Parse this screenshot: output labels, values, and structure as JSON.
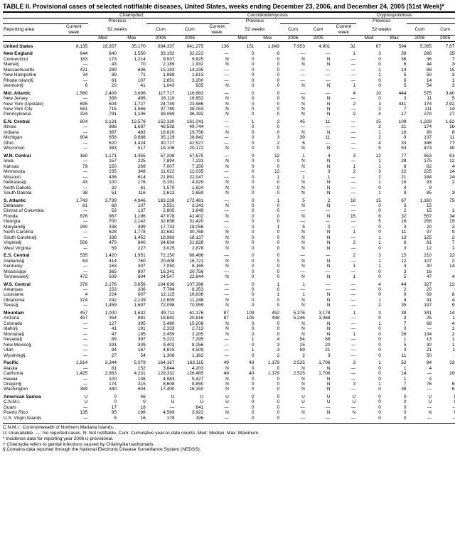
{
  "title": "TABLE II. Provisional cases of selected notifiable diseases, United States, weeks ending December 23, 2006, and December 24, 2005 (51st Week)*",
  "diseases": [
    "Chlamydia†",
    "Coccidioidomycosis",
    "Cryptosporidiosis"
  ],
  "header_groups": [
    "Previous",
    "Previous",
    "Previous"
  ],
  "header_cols": [
    "Reporting area",
    "Current week",
    "Med",
    "Max",
    "Cum 2006",
    "Cum 2005",
    "Current week",
    "Med",
    "Max",
    "Cum 2006",
    "Cum 2005",
    "Current week",
    "Med",
    "Max",
    "Cum 2006",
    "Cum 2005"
  ],
  "header_sub": [
    "52 weeks",
    "52 weeks",
    "52 weeks"
  ],
  "rows": [
    {
      "s": true,
      "c": [
        "United States",
        "8,135",
        "19,357",
        "35,170",
        "934,337",
        "941,275",
        "136",
        "151",
        "1,643",
        "7,953",
        "4,901",
        "32",
        "67",
        "594",
        "5,065",
        "7,677"
      ]
    },
    {
      "s": true,
      "c": [
        "New England",
        "644",
        "640",
        "1,550",
        "33,192",
        "32,222",
        "—",
        "0",
        "0",
        "—",
        "—",
        "1",
        "3",
        "39",
        "286",
        "350"
      ]
    },
    {
      "c": [
        "Connecticut",
        "183",
        "173",
        "1,214",
        "9,937",
        "9,825",
        "N",
        "0",
        "0",
        "N",
        "N",
        "—",
        "0",
        "36",
        "36",
        "79"
      ]
    },
    {
      "c": [
        "Maine§",
        "—",
        "43",
        "70",
        "2,189",
        "1,932",
        "N",
        "0",
        "0",
        "N",
        "N",
        "—",
        "0",
        "6",
        "44",
        "30"
      ]
    },
    {
      "c": [
        "Massachusetts",
        "421",
        "289",
        "606",
        "15,183",
        "14,235",
        "—",
        "0",
        "0",
        "—",
        "—",
        "—",
        "1",
        "14",
        "88",
        "151"
      ]
    },
    {
      "c": [
        "New Hampshire",
        "34",
        "39",
        "71",
        "1,989",
        "1,813",
        "—",
        "0",
        "0",
        "—",
        "—",
        "—",
        "1",
        "5",
        "50",
        "38"
      ]
    },
    {
      "c": [
        "Rhode Island§",
        "—",
        "61",
        "107",
        "2,851",
        "3,200",
        "—",
        "0",
        "0",
        "—",
        "—",
        "—",
        "0",
        "6",
        "14",
        "13"
      ]
    },
    {
      "c": [
        "Vermont§",
        "6",
        "20",
        "41",
        "1,043",
        "935",
        "N",
        "0",
        "0",
        "N",
        "N",
        "1",
        "0",
        "5",
        "54",
        "39"
      ]
    },
    {
      "s": true,
      "c": [
        "Mid. Atlantic",
        "1,580",
        "2,409",
        "3,696",
        "117,717",
        "116,683",
        "—",
        "0",
        "0",
        "—",
        "—",
        "4",
        "10",
        "444",
        "575",
        "3,401"
      ]
    },
    {
      "c": [
        "New Jersey",
        "—",
        "358",
        "495",
        "16,110",
        "18,852",
        "N",
        "0",
        "0",
        "N",
        "N",
        "—",
        "0",
        "3",
        "11",
        "58"
      ]
    },
    {
      "c": [
        "New York (Upstate)",
        "695",
        "504",
        "1,727",
        "24,749",
        "23,586",
        "N",
        "0",
        "0",
        "N",
        "N",
        "2",
        "3",
        "441",
        "174",
        "2,924"
      ]
    },
    {
      "c": [
        "New York City",
        "561",
        "716",
        "1,566",
        "37,789",
        "38,053",
        "N",
        "0",
        "0",
        "N",
        "N",
        "—",
        "2",
        "7",
        "111",
        "146"
      ]
    },
    {
      "c": [
        "Pennsylvania",
        "324",
        "791",
        "1,106",
        "39,069",
        "36,192",
        "N",
        "0",
        "0",
        "N",
        "N",
        "2",
        "4",
        "17",
        "279",
        "273"
      ]
    },
    {
      "s": true,
      "c": [
        "E.N. Central",
        "804",
        "3,131",
        "12,578",
        "152,330",
        "161,041",
        "—",
        "1",
        "3",
        "45",
        "11",
        "—",
        "15",
        "109",
        "1,229",
        "1,624"
      ]
    },
    {
      "c": [
        "Illinois",
        "—",
        "986",
        "1,697",
        "49,558",
        "49,744",
        "—",
        "0",
        "0",
        "—",
        "—",
        "—",
        "2",
        "21",
        "174",
        "160"
      ]
    },
    {
      "c": [
        "Indiana",
        "—",
        "387",
        "483",
        "18,820",
        "19,756",
        "N",
        "0",
        "0",
        "N",
        "N",
        "—",
        "1",
        "18",
        "99",
        "85"
      ]
    },
    {
      "c": [
        "Michigan",
        "804",
        "658",
        "9,888",
        "35,129",
        "28,842",
        "—",
        "0",
        "3",
        "39",
        "11",
        "—",
        "2",
        "9",
        "137",
        "112"
      ]
    },
    {
      "c": [
        "Ohio",
        "—",
        "620",
        "1,424",
        "30,717",
        "42,527",
        "—",
        "0",
        "2",
        "6",
        "—",
        "—",
        "4",
        "33",
        "346",
        "770"
      ]
    },
    {
      "c": [
        "Wisconsin",
        "—",
        "383",
        "517",
        "18,106",
        "20,172",
        "N",
        "0",
        "0",
        "N",
        "N",
        "—",
        "5",
        "53",
        "473",
        "497"
      ]
    },
    {
      "s": true,
      "c": [
        "W.N. Central",
        "160",
        "1,171",
        "1,455",
        "57,208",
        "57,675",
        "—",
        "0",
        "12",
        "1",
        "4",
        "3",
        "12",
        "77",
        "853",
        "610"
      ]
    },
    {
      "c": [
        "Iowa",
        "—",
        "157",
        "225",
        "7,894",
        "7,231",
        "N",
        "0",
        "0",
        "N",
        "N",
        "—",
        "1",
        "28",
        "175",
        "121"
      ]
    },
    {
      "c": [
        "Kansas",
        "79",
        "150",
        "269",
        "7,007",
        "7,150",
        "N",
        "0",
        "0",
        "N",
        "N",
        "1",
        "1",
        "8",
        "82",
        "40"
      ]
    },
    {
      "c": [
        "Minnesota",
        "—",
        "235",
        "348",
        "11,022",
        "12,035",
        "—",
        "0",
        "12",
        "—",
        "3",
        "2",
        "3",
        "22",
        "225",
        "144"
      ]
    },
    {
      "c": [
        "Missouri",
        "—",
        "436",
        "614",
        "21,891",
        "22,047",
        "—",
        "0",
        "1",
        "1",
        "1",
        "—",
        "2",
        "21",
        "184",
        "246"
      ]
    },
    {
      "c": [
        "Nebraska§",
        "43",
        "100",
        "176",
        "5,191",
        "4,929",
        "N",
        "0",
        "0",
        "N",
        "N",
        "—",
        "1",
        "16",
        "93",
        "28"
      ]
    },
    {
      "c": [
        "North Dakota",
        "—",
        "32",
        "61",
        "1,570",
        "1,624",
        "N",
        "0",
        "0",
        "N",
        "N",
        "—",
        "0",
        "4",
        "9",
        "1"
      ]
    },
    {
      "c": [
        "South Dakota",
        "38",
        "51",
        "116",
        "2,613",
        "2,659",
        "N",
        "0",
        "0",
        "N",
        "N",
        "—",
        "1",
        "9",
        "85",
        "30"
      ]
    },
    {
      "s": true,
      "c": [
        "S. Atlantic",
        "1,743",
        "3,739",
        "4,946",
        "183,226",
        "172,481",
        "—",
        "0",
        "1",
        "5",
        "2",
        "18",
        "15",
        "67",
        "1,160",
        "758"
      ]
    },
    {
      "c": [
        "Delaware",
        "81",
        "68",
        "107",
        "3,551",
        "3,343",
        "N",
        "0",
        "0",
        "N",
        "N",
        "—",
        "0",
        "3",
        "15",
        "6"
      ]
    },
    {
      "c": [
        "District of Columbia",
        "—",
        "53",
        "137",
        "2,805",
        "3,649",
        "—",
        "0",
        "0",
        "—",
        "—",
        "—",
        "0",
        "2",
        "15",
        "18"
      ]
    },
    {
      "c": [
        "Florida",
        "876",
        "967",
        "1,196",
        "47,078",
        "42,402",
        "N",
        "0",
        "0",
        "N",
        "N",
        "15",
        "6",
        "32",
        "557",
        "345"
      ]
    },
    {
      "c": [
        "Georgia",
        "—",
        "700",
        "2,142",
        "32,656",
        "31,420",
        "—",
        "0",
        "0",
        "—",
        "—",
        "—",
        "5",
        "16",
        "258",
        "150"
      ]
    },
    {
      "c": [
        "Maryland§",
        "280",
        "338",
        "499",
        "17,733",
        "18,056",
        "—",
        "0",
        "1",
        "5",
        "2",
        "—",
        "0",
        "3",
        "20",
        "34"
      ]
    },
    {
      "c": [
        "North Carolina",
        "—",
        "628",
        "1,778",
        "32,682",
        "30,768",
        "N",
        "0",
        "0",
        "N",
        "N",
        "1",
        "0",
        "11",
        "97",
        "92"
      ]
    },
    {
      "c": [
        "South Carolina§",
        "—",
        "338",
        "1,452",
        "18,983",
        "18,137",
        "N",
        "0",
        "0",
        "N",
        "N",
        "—",
        "1",
        "13",
        "125",
        "24"
      ]
    },
    {
      "c": [
        "Virginia§",
        "506",
        "470",
        "840",
        "24,634",
        "21,828",
        "N",
        "0",
        "0",
        "N",
        "N",
        "2",
        "1",
        "6",
        "61",
        "71"
      ]
    },
    {
      "c": [
        "West Virginia",
        "—",
        "59",
        "227",
        "3,025",
        "2,878",
        "N",
        "0",
        "0",
        "N",
        "N",
        "—",
        "0",
        "3",
        "12",
        "18"
      ]
    },
    {
      "s": true,
      "c": [
        "E.S. Central",
        "535",
        "1,420",
        "1,951",
        "72,150",
        "68,486",
        "—",
        "0",
        "0",
        "—",
        "—",
        "2",
        "3",
        "15",
        "210",
        "228"
      ]
    },
    {
      "c": [
        "Alabama§",
        "63",
        "414",
        "760",
        "20,408",
        "16,721",
        "N",
        "0",
        "0",
        "N",
        "N",
        "—",
        "1",
        "12",
        "107",
        "28"
      ]
    },
    {
      "c": [
        "Kentucky",
        "—",
        "163",
        "307",
        "7,050",
        "8,165",
        "N",
        "0",
        "0",
        "N",
        "N",
        "1",
        "1",
        "3",
        "40",
        "148"
      ]
    },
    {
      "c": [
        "Mississippi",
        "—",
        "365",
        "807",
        "18,341",
        "20,756",
        "—",
        "0",
        "0",
        "—",
        "—",
        "—",
        "0",
        "3",
        "16",
        "3"
      ]
    },
    {
      "c": [
        "Tennessee§",
        "472",
        "509",
        "604",
        "24,547",
        "22,844",
        "N",
        "0",
        "0",
        "N",
        "N",
        "1",
        "0",
        "5",
        "47",
        "49"
      ]
    },
    {
      "s": true,
      "c": [
        "W.S. Central",
        "378",
        "2,176",
        "3,656",
        "104,636",
        "107,396",
        "—",
        "0",
        "1",
        "1",
        "—",
        "—",
        "4",
        "44",
        "327",
        "228"
      ]
    },
    {
      "c": [
        "Arkansas",
        "—",
        "153",
        "336",
        "7,784",
        "8,353",
        "—",
        "0",
        "0",
        "—",
        "—",
        "—",
        "0",
        "2",
        "20",
        "6"
      ]
    },
    {
      "c": [
        "Louisiana",
        "4",
        "224",
        "607",
        "12,115",
        "16,836",
        "—",
        "0",
        "1",
        "1",
        "N",
        "—",
        "0",
        "9",
        "69",
        "82"
      ]
    },
    {
      "c": [
        "Oklahoma",
        "374",
        "242",
        "2,139",
        "12,659",
        "11,248",
        "N",
        "0",
        "0",
        "N",
        "N",
        "—",
        "1",
        "4",
        "41",
        "44"
      ]
    },
    {
      "c": [
        "Texas§",
        "—",
        "1,459",
        "1,697",
        "72,098",
        "70,959",
        "N",
        "0",
        "0",
        "N",
        "N",
        "—",
        "2",
        "35",
        "197",
        "96"
      ]
    },
    {
      "s": true,
      "c": [
        "Mountain",
        "457",
        "1,000",
        "1,632",
        "49,711",
        "62,176",
        "87",
        "109",
        "452",
        "5,376",
        "3,178",
        "1",
        "3",
        "38",
        "341",
        "143"
      ]
    },
    {
      "c": [
        "Arizona",
        "457",
        "354",
        "881",
        "18,692",
        "20,816",
        "87",
        "105",
        "448",
        "5,246",
        "3,068",
        "—",
        "0",
        "3",
        "25",
        "11"
      ]
    },
    {
      "c": [
        "Colorado",
        "—",
        "127",
        "395",
        "5,480",
        "15,208",
        "N",
        "0",
        "0",
        "N",
        "N",
        "—",
        "1",
        "7",
        "68",
        "42"
      ]
    },
    {
      "c": [
        "Idaho§",
        "—",
        "41",
        "191",
        "2,333",
        "2,713",
        "N",
        "0",
        "0",
        "N",
        "N",
        "—",
        "0",
        "0",
        "—",
        "15"
      ]
    },
    {
      "c": [
        "Montana§",
        "—",
        "47",
        "195",
        "2,459",
        "2,205",
        "N",
        "0",
        "0",
        "N",
        "N",
        "1",
        "0",
        "26",
        "134",
        "23"
      ]
    },
    {
      "c": [
        "Nevada§",
        "—",
        "89",
        "397",
        "5,222",
        "7,295",
        "—",
        "1",
        "4",
        "54",
        "66",
        "—",
        "0",
        "1",
        "13",
        "13"
      ]
    },
    {
      "c": [
        "New Mexico§",
        "—",
        "191",
        "339",
        "9,402",
        "8,256",
        "—",
        "0",
        "3",
        "15",
        "20",
        "—",
        "0",
        "5",
        "30",
        "17"
      ]
    },
    {
      "c": [
        "Utah",
        "—",
        "94",
        "167",
        "4,815",
        "4,509",
        "—",
        "1",
        "3",
        "59",
        "21",
        "—",
        "0",
        "3",
        "21",
        "11"
      ]
    },
    {
      "c": [
        "Wyoming§",
        "—",
        "27",
        "54",
        "1,308",
        "1,162",
        "—",
        "0",
        "2",
        "2",
        "3",
        "—",
        "0",
        "11",
        "50",
        "3"
      ]
    },
    {
      "s": true,
      "c": [
        "Pacific",
        "1,814",
        "3,344",
        "5,079",
        "164,167",
        "163,115",
        "49",
        "43",
        "1,179",
        "2,525",
        "1,706",
        "3",
        "1",
        "52",
        "84",
        "335"
      ]
    },
    {
      "c": [
        "Alaska",
        "—",
        "81",
        "152",
        "3,844",
        "4,203",
        "N",
        "0",
        "0",
        "N",
        "N",
        "—",
        "0",
        "1",
        "4",
        "3"
      ]
    },
    {
      "c": [
        "California",
        "1,425",
        "2,663",
        "4,231",
        "129,332",
        "126,485",
        "49",
        "43",
        "1,179",
        "2,525",
        "1,706",
        "—",
        "0",
        "14",
        "—",
        "200"
      ]
    },
    {
      "c": [
        "Hawaii",
        "—",
        "100",
        "136",
        "4,983",
        "5,427",
        "N",
        "0",
        "0",
        "N",
        "N",
        "—",
        "0",
        "1",
        "4",
        "1"
      ]
    },
    {
      "c": [
        "Oregon§",
        "—",
        "174",
        "315",
        "8,608",
        "8,850",
        "N",
        "0",
        "0",
        "N",
        "N",
        "3",
        "1",
        "7",
        "76",
        "69"
      ]
    },
    {
      "c": [
        "Washington",
        "389",
        "340",
        "604",
        "17,400",
        "18,150",
        "N",
        "0",
        "0",
        "N",
        "N",
        "—",
        "0",
        "38",
        "—",
        "62"
      ]
    },
    {
      "s": true,
      "c": [
        "American Samoa",
        "U",
        "0",
        "46",
        "U",
        "U",
        "U",
        "0",
        "0",
        "U",
        "U",
        "U",
        "0",
        "0",
        "U",
        "U"
      ]
    },
    {
      "c": [
        "C.N.M.I.",
        "U",
        "0",
        "0",
        "U",
        "U",
        "U",
        "0",
        "0",
        "U",
        "U",
        "U",
        "0",
        "0",
        "U",
        "U"
      ]
    },
    {
      "c": [
        "Guam",
        "—",
        "17",
        "18",
        "—",
        "641",
        "—",
        "0",
        "0",
        "—",
        "—",
        "—",
        "0",
        "0",
        "—",
        "—"
      ]
    },
    {
      "c": [
        "Puerto Rico",
        "135",
        "95",
        "198",
        "4,569",
        "3,922",
        "N",
        "0",
        "0",
        "N",
        "N",
        "N",
        "0",
        "0",
        "N",
        "N"
      ]
    },
    {
      "c": [
        "U.S. Virgin Islands",
        "—",
        "5",
        "16",
        "178",
        "196",
        "—",
        "0",
        "0",
        "—",
        "—",
        "—",
        "0",
        "0",
        "—",
        "—"
      ]
    }
  ],
  "footnotes": [
    "C.N.M.I.: Commonwealth of Northern Mariana Islands.",
    "U: Unavailable.    —: No reported cases.    N: Not notifiable.    Cum: Cumulative year-to-date counts.    Med: Median.    Max: Maximum.",
    "* Incidence data for reporting year 2006 is provisional.",
    "† Chlamydia refers to genital infections caused by Chlamydia trachomatis.",
    "§ Contains data reported through the National Electronic Disease Surveillance System (NEDSS)."
  ],
  "colors": {
    "bg": "#ffffff",
    "text": "#000000",
    "border": "#000000"
  }
}
